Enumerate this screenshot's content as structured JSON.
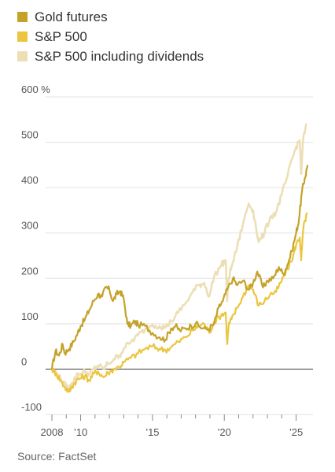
{
  "chart_data": {
    "type": "line",
    "title": "",
    "xlabel": "",
    "ylabel": "",
    "y_unit": "%",
    "xlim": [
      2008,
      2025.9
    ],
    "ylim": [
      -100,
      600
    ],
    "y_ticks": [
      -100,
      0,
      100,
      200,
      300,
      400,
      500,
      600
    ],
    "y_tick_labels": [
      "-100",
      "0",
      "100",
      "200",
      "300",
      "400",
      "500",
      "600 %"
    ],
    "x_ticks": [
      2008,
      2010,
      2015,
      2020,
      2025
    ],
    "x_tick_labels": [
      "2008",
      "’10",
      "’15",
      "’20",
      "’25"
    ],
    "grid": true,
    "legend_position": "top-left",
    "source": "Source: FactSet",
    "series": [
      {
        "name": "Gold futures",
        "color": "#c4a229",
        "x": [
          2008.0,
          2008.25,
          2008.5,
          2008.75,
          2008.9,
          2009.2,
          2009.5,
          2009.8,
          2010.0,
          2010.3,
          2010.6,
          2010.9,
          2011.2,
          2011.5,
          2011.75,
          2012.0,
          2012.25,
          2012.5,
          2012.75,
          2013.0,
          2013.25,
          2013.5,
          2013.75,
          2014.0,
          2014.5,
          2015.0,
          2015.5,
          2015.9,
          2016.3,
          2016.6,
          2016.9,
          2017.3,
          2017.7,
          2018.0,
          2018.5,
          2018.9,
          2019.3,
          2019.6,
          2019.9,
          2020.2,
          2020.6,
          2020.9,
          2021.3,
          2021.7,
          2022.0,
          2022.3,
          2022.7,
          2023.0,
          2023.4,
          2023.8,
          2024.1,
          2024.4,
          2024.7,
          2025.0,
          2025.2,
          2025.4,
          2025.6,
          2025.8
        ],
        "values": [
          0,
          40,
          30,
          55,
          35,
          45,
          60,
          80,
          95,
          110,
          130,
          150,
          165,
          160,
          180,
          175,
          150,
          165,
          172,
          155,
          100,
          95,
          105,
          98,
          95,
          80,
          70,
          65,
          90,
          95,
          85,
          90,
          95,
          100,
          90,
          88,
          100,
          135,
          150,
          175,
          200,
          185,
          195,
          175,
          190,
          215,
          180,
          195,
          200,
          225,
          210,
          230,
          260,
          300,
          330,
          390,
          420,
          450
        ]
      },
      {
        "name": "S&P 500",
        "color": "#ebc53d",
        "x": [
          2008.0,
          2008.3,
          2008.6,
          2008.9,
          2009.2,
          2009.4,
          2009.7,
          2010.0,
          2010.3,
          2010.6,
          2010.9,
          2011.2,
          2011.6,
          2011.9,
          2012.3,
          2012.7,
          2013.0,
          2013.5,
          2014.0,
          2014.5,
          2015.0,
          2015.5,
          2015.9,
          2016.3,
          2016.8,
          2017.3,
          2017.8,
          2018.2,
          2018.6,
          2018.95,
          2019.3,
          2019.8,
          2020.1,
          2020.2,
          2020.3,
          2020.5,
          2020.9,
          2021.3,
          2021.7,
          2022.0,
          2022.4,
          2022.8,
          2023.2,
          2023.6,
          2024.0,
          2024.4,
          2024.8,
          2025.0,
          2025.25,
          2025.35,
          2025.5,
          2025.75
        ],
        "values": [
          0,
          -10,
          -25,
          -40,
          -50,
          -38,
          -25,
          -20,
          -15,
          -25,
          -10,
          -5,
          -18,
          -8,
          0,
          5,
          15,
          25,
          35,
          45,
          50,
          45,
          42,
          48,
          60,
          70,
          85,
          95,
          100,
          80,
          105,
          120,
          125,
          55,
          95,
          110,
          135,
          160,
          185,
          175,
          140,
          150,
          165,
          170,
          195,
          220,
          250,
          275,
          290,
          240,
          310,
          345
        ]
      },
      {
        "name": "S&P 500 including dividends",
        "color": "#ecdfb6",
        "x": [
          2008.0,
          2008.3,
          2008.6,
          2008.9,
          2009.2,
          2009.4,
          2009.7,
          2010.0,
          2010.3,
          2010.6,
          2010.9,
          2011.2,
          2011.6,
          2011.9,
          2012.3,
          2012.7,
          2013.0,
          2013.5,
          2014.0,
          2014.5,
          2015.0,
          2015.5,
          2015.9,
          2016.3,
          2016.8,
          2017.3,
          2017.8,
          2018.2,
          2018.6,
          2018.95,
          2019.3,
          2019.8,
          2020.1,
          2020.2,
          2020.3,
          2020.5,
          2020.9,
          2021.3,
          2021.7,
          2022.0,
          2022.4,
          2022.8,
          2023.2,
          2023.6,
          2024.0,
          2024.4,
          2024.8,
          2025.0,
          2025.25,
          2025.35,
          2025.5,
          2025.75
        ],
        "values": [
          0,
          -8,
          -22,
          -35,
          -45,
          -30,
          -15,
          -10,
          -5,
          -12,
          0,
          8,
          0,
          12,
          22,
          30,
          45,
          60,
          75,
          88,
          98,
          95,
          92,
          105,
          125,
          145,
          170,
          185,
          190,
          160,
          205,
          230,
          240,
          150,
          200,
          225,
          270,
          320,
          365,
          350,
          280,
          300,
          335,
          345,
          385,
          425,
          470,
          490,
          505,
          430,
          510,
          540
        ]
      }
    ]
  }
}
